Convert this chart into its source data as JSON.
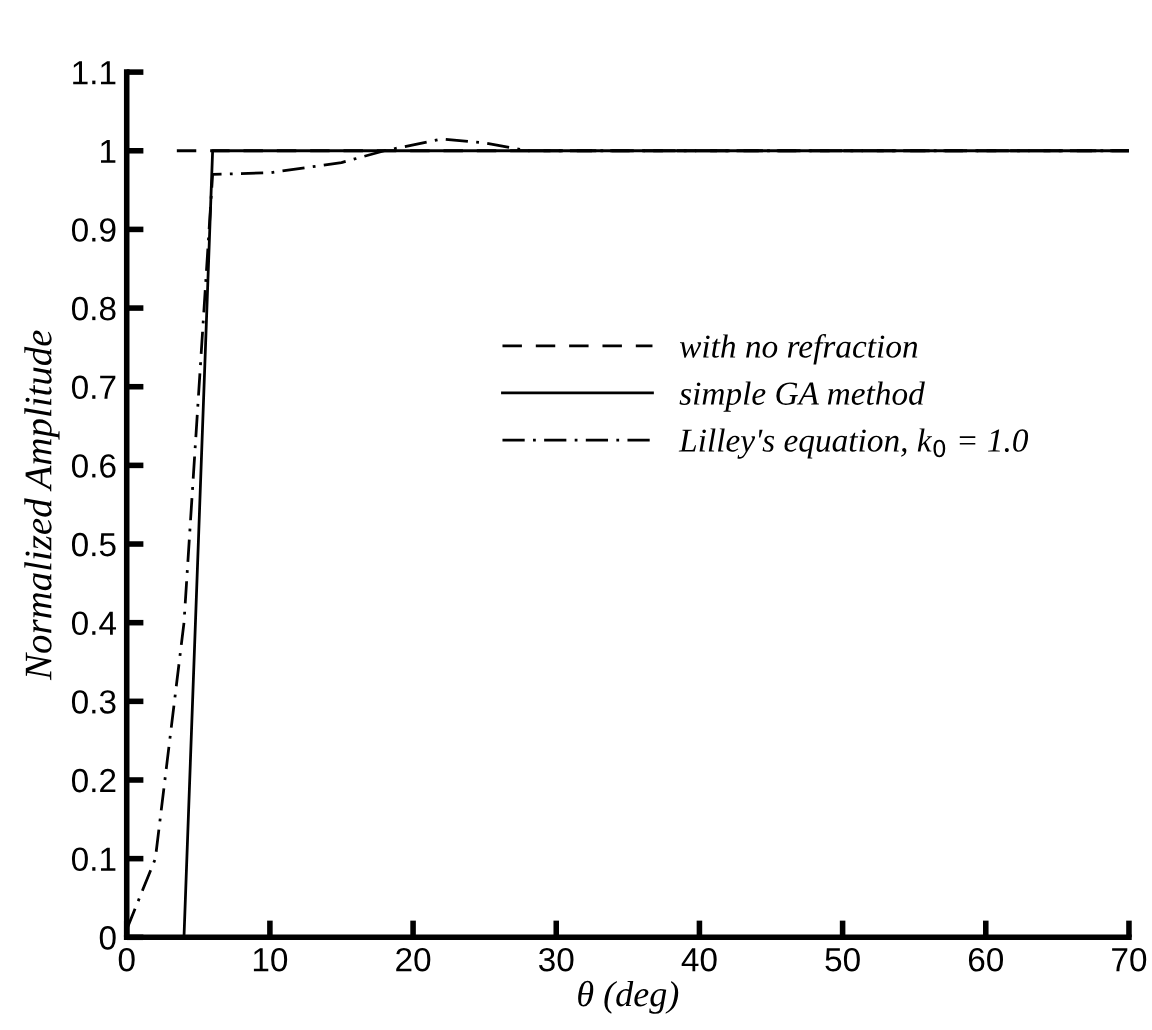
{
  "chart_data": {
    "type": "line",
    "xlabel": "θ (deg)",
    "ylabel": "Normalized Amplitude",
    "xlim": [
      0,
      70
    ],
    "ylim": [
      0,
      1.1
    ],
    "xticks": [
      0,
      10,
      20,
      30,
      40,
      50,
      60,
      70
    ],
    "yticks": [
      0,
      0.1,
      0.2,
      0.3,
      0.4,
      0.5,
      0.6,
      0.7,
      0.8,
      0.9,
      1,
      1.1
    ],
    "legend": "right",
    "grid": false,
    "series": [
      {
        "name": "with no refraction",
        "color": "#000000",
        "line_style": "dashed",
        "x": [
          3.5,
          70
        ],
        "values": [
          1,
          1
        ]
      },
      {
        "name": "simple GA method",
        "color": "#000000",
        "line_style": "solid",
        "x": [
          4,
          6,
          70
        ],
        "values": [
          0,
          1,
          1
        ]
      },
      {
        "name": "Lilley's equation, k$_{0}$ = 1.0",
        "color": "#000000",
        "line_style": "dashdot",
        "x": [
          0,
          2,
          4,
          6,
          10,
          15,
          18,
          22,
          25,
          28,
          70
        ],
        "values": [
          0.01,
          0.1,
          0.4,
          0.97,
          0.972,
          0.985,
          1.0,
          1.015,
          1.01,
          1.0,
          1.0
        ]
      }
    ]
  }
}
